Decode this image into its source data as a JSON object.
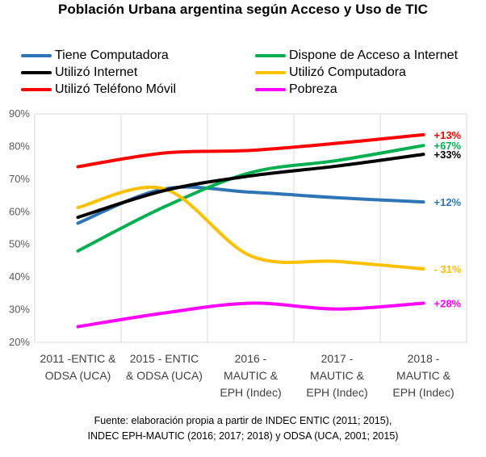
{
  "chart_data": {
    "type": "line",
    "title": "Población Urbana argentina según Acceso y Uso de TIC",
    "categories": [
      [
        "2011 -ENTIC &",
        "ODSA (UCA)"
      ],
      [
        "2015 - ENTIC",
        "& ODSA (UCA)"
      ],
      [
        "2016 -",
        "MAUTIC &",
        "EPH (Indec)"
      ],
      [
        "2017 -",
        "MAUTIC &",
        "EPH (Indec)"
      ],
      [
        "2018 -",
        "MAUTIC &",
        "EPH (Indec)"
      ]
    ],
    "ylim": [
      20,
      90
    ],
    "yticks": [
      20,
      30,
      40,
      50,
      60,
      70,
      80,
      90
    ],
    "ytick_labels": [
      "20%",
      "30%",
      "40%",
      "50%",
      "60%",
      "70%",
      "80%",
      "90%"
    ],
    "grid": "vertical",
    "legend_position": "top",
    "series": [
      {
        "name": "Tiene Computadora",
        "color": "#2E75B6",
        "values": [
          56.5,
          67,
          66,
          64.3,
          63
        ],
        "end_label": "+12%"
      },
      {
        "name": "Dispone de Acceso a Internet",
        "color": "#00B050",
        "values": [
          48,
          61.5,
          72,
          75.7,
          80.3
        ],
        "end_label": "+67%"
      },
      {
        "name": "Utilizó Internet",
        "color": "#000000",
        "values": [
          58.3,
          66.5,
          71,
          74,
          77.6
        ],
        "end_label": "+33%"
      },
      {
        "name": "Utilizó Computadora",
        "color": "#FFC000",
        "values": [
          61.3,
          67,
          46.5,
          44.8,
          42.5
        ],
        "end_label": "- 31%"
      },
      {
        "name": "Utilizó Teléfono Móvil",
        "color": "#FF0000",
        "values": [
          73.8,
          78,
          78.8,
          81,
          83.6
        ],
        "end_label": "+13%"
      },
      {
        "name": "Pobreza",
        "color": "#FF00FF",
        "values": [
          24.8,
          29,
          32,
          30.2,
          32
        ],
        "end_label": "+28%"
      }
    ],
    "end_label_colors": [
      "#2E75B6",
      "#00B050",
      "#000000",
      "#FFC000",
      "#FF0000",
      "#FF00FF"
    ]
  },
  "source": {
    "line1": "Fuente: elaboración propia a partir de INDEC ENTIC (2011; 2015),",
    "line2": "INDEC EPH-MAUTIC (2016; 2017; 2018) y ODSA (UCA, 2001; 2015)"
  }
}
